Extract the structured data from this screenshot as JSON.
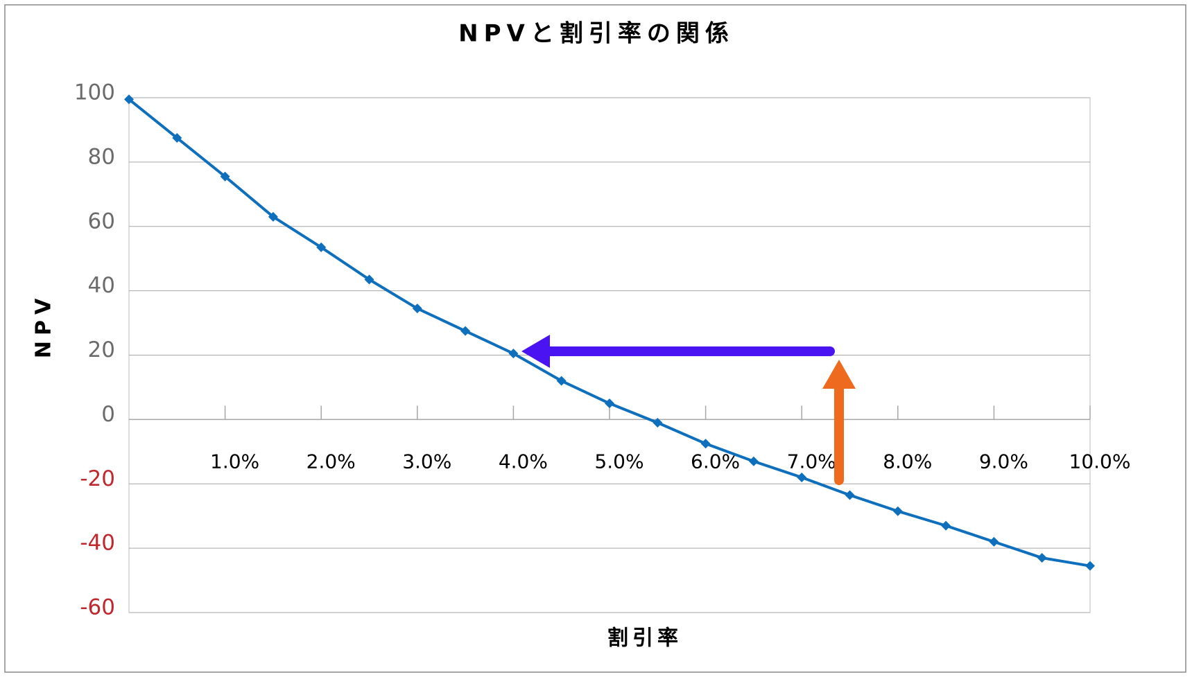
{
  "chart_data": {
    "type": "line",
    "title": "NPVと割引率の関係",
    "x_label": "割引率",
    "y_label": "NPV",
    "x": [
      0,
      0.5,
      1,
      1.5,
      2,
      2.5,
      3,
      3.5,
      4,
      4.5,
      5,
      5.5,
      6,
      6.5,
      7,
      7.5,
      8,
      8.5,
      9,
      9.5,
      10
    ],
    "values": [
      99.5,
      87.5,
      75.5,
      63,
      53.5,
      43.5,
      34.5,
      27.5,
      20.5,
      12,
      5,
      -1,
      -7.5,
      -13,
      -18,
      -23.5,
      -28.5,
      -33,
      -38,
      -43,
      -45.5
    ],
    "color": "#0e6fbd",
    "xlim": [
      0,
      10
    ],
    "xticks": [
      {
        "value": 1,
        "label": "1.0%"
      },
      {
        "value": 2,
        "label": "2.0%"
      },
      {
        "value": 3,
        "label": "3.0%"
      },
      {
        "value": 4,
        "label": "4.0%"
      },
      {
        "value": 5,
        "label": "5.0%"
      },
      {
        "value": 6,
        "label": "6.0%"
      },
      {
        "value": 7,
        "label": "7.0%"
      },
      {
        "value": 8,
        "label": "8.0%"
      },
      {
        "value": 9,
        "label": "9.0%"
      },
      {
        "value": 10,
        "label": "10.0%"
      }
    ],
    "ylim": [
      -60,
      100
    ],
    "yticks": [
      -60,
      -40,
      -20,
      0,
      20,
      40,
      60,
      80,
      100
    ],
    "grid": true,
    "negative_tick_color": "#c0282d",
    "tick_color": "#6b6b6b"
  }
}
